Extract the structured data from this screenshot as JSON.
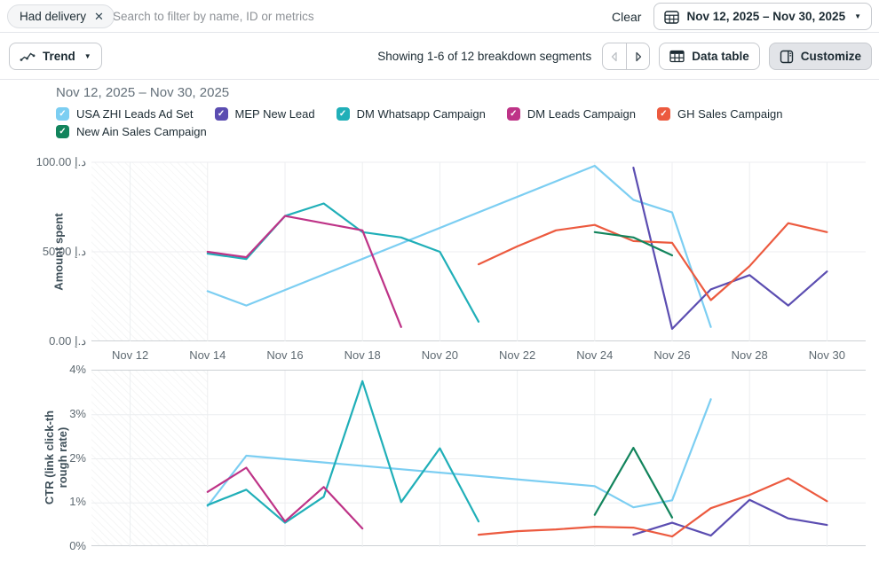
{
  "topbar": {
    "filter_chip": "Had delivery",
    "search_placeholder": "Search to filter by name, ID or metrics",
    "clear_label": "Clear",
    "date_range": "Nov 12, 2025 – Nov 30, 2025"
  },
  "toolbar": {
    "view_label": "Trend",
    "showing_text": "Showing 1-6 of 12 breakdown segments",
    "data_table_label": "Data table",
    "customize_label": "Customize"
  },
  "chart_header": {
    "title": "Nov 12, 2025 – Nov 30, 2025"
  },
  "legend": {
    "items": [
      {
        "label": "USA ZHI Leads Ad Set",
        "color": "#7CCEF2"
      },
      {
        "label": "MEP New Lead",
        "color": "#5B4DB1"
      },
      {
        "label": "DM Whatsapp Campaign",
        "color": "#20AFB8"
      },
      {
        "label": "DM Leads Campaign",
        "color": "#BE3387"
      },
      {
        "label": "GH Sales Campaign",
        "color": "#EC5A3F"
      },
      {
        "label": "New Ain Sales Campaign",
        "color": "#12845C"
      }
    ]
  },
  "chart_data": [
    {
      "type": "line",
      "ylabel": "Amount spent",
      "y_min": 0,
      "y_max": 100,
      "y_ticks": [
        {
          "value": 100,
          "label": "100.00 د.إ"
        },
        {
          "value": 50,
          "label": "50.00 د.إ"
        },
        {
          "value": 0,
          "label": "0.00 د.إ"
        }
      ],
      "grid_y": [
        50,
        100
      ],
      "x_min": -1,
      "x_max": 19,
      "no_data_before_day": 2,
      "x_ticks": [
        {
          "day": 0,
          "label": "Nov 12"
        },
        {
          "day": 2,
          "label": "Nov 14"
        },
        {
          "day": 4,
          "label": "Nov 16"
        },
        {
          "day": 6,
          "label": "Nov 18"
        },
        {
          "day": 8,
          "label": "Nov 20"
        },
        {
          "day": 10,
          "label": "Nov 22"
        },
        {
          "day": 12,
          "label": "Nov 24"
        },
        {
          "day": 14,
          "label": "Nov 26"
        },
        {
          "day": 16,
          "label": "Nov 28"
        },
        {
          "day": 18,
          "label": "Nov 30"
        }
      ],
      "series": [
        {
          "name": "USA ZHI Leads Ad Set",
          "color": "#7CCEF2",
          "points": [
            [
              2,
              28
            ],
            [
              3,
              20
            ],
            [
              12,
              98
            ],
            [
              13,
              79
            ],
            [
              14,
              72
            ],
            [
              15,
              8
            ]
          ]
        },
        {
          "name": "MEP New Lead",
          "color": "#5B4DB1",
          "points": [
            [
              13,
              97
            ],
            [
              14,
              7
            ],
            [
              15,
              29
            ],
            [
              16,
              37
            ],
            [
              17,
              20
            ],
            [
              18,
              39
            ]
          ]
        },
        {
          "name": "DM Whatsapp Campaign",
          "color": "#20AFB8",
          "points": [
            [
              2,
              49
            ],
            [
              3,
              46
            ],
            [
              4,
              70
            ],
            [
              5,
              77
            ],
            [
              6,
              61
            ],
            [
              7,
              58
            ],
            [
              8,
              50
            ],
            [
              9,
              11
            ]
          ]
        },
        {
          "name": "DM Leads Campaign",
          "color": "#BE3387",
          "points": [
            [
              2,
              50
            ],
            [
              3,
              47
            ],
            [
              4,
              70
            ],
            [
              6,
              62
            ],
            [
              7,
              8
            ]
          ]
        },
        {
          "name": "GH Sales Campaign",
          "color": "#EC5A3F",
          "points": [
            [
              9,
              43
            ],
            [
              10,
              53
            ],
            [
              11,
              62
            ],
            [
              12,
              65
            ],
            [
              13,
              56
            ],
            [
              14,
              55
            ],
            [
              15,
              23
            ],
            [
              16,
              42
            ],
            [
              17,
              66
            ],
            [
              18,
              61
            ]
          ]
        },
        {
          "name": "New Ain Sales Campaign",
          "color": "#12845C",
          "points": [
            [
              12,
              61
            ],
            [
              13,
              58
            ],
            [
              14,
              48
            ]
          ]
        }
      ]
    },
    {
      "type": "line",
      "ylabel": "CTR (link click-through rate)",
      "ylabel_lines": [
        "CTR (link click-th",
        "rough rate)"
      ],
      "y_min": 0,
      "y_max": 4,
      "y_ticks": [
        {
          "value": 4,
          "label": "4%"
        },
        {
          "value": 3,
          "label": "3%"
        },
        {
          "value": 2,
          "label": "2%"
        },
        {
          "value": 1,
          "label": "1%"
        },
        {
          "value": 0,
          "label": "0%"
        }
      ],
      "grid_y": [
        1,
        2,
        3
      ],
      "x_min": -1,
      "x_max": 19,
      "no_data_before_day": 2,
      "x_ticks": [
        {
          "day": 0,
          "label": "Nov 12"
        },
        {
          "day": 2,
          "label": "Nov 14"
        },
        {
          "day": 4,
          "label": "Nov 16"
        },
        {
          "day": 6,
          "label": "Nov 18"
        },
        {
          "day": 8,
          "label": "Nov 20"
        },
        {
          "day": 10,
          "label": "Nov 22"
        },
        {
          "day": 12,
          "label": "Nov 24"
        },
        {
          "day": 14,
          "label": "Nov 26"
        },
        {
          "day": 16,
          "label": "Nov 28"
        },
        {
          "day": 18,
          "label": "Nov 30"
        }
      ],
      "series": [
        {
          "name": "USA ZHI Leads Ad Set",
          "color": "#7CCEF2",
          "points": [
            [
              2,
              0.93
            ],
            [
              3,
              2.07
            ],
            [
              12,
              1.38
            ],
            [
              13,
              0.9
            ],
            [
              14,
              1.06
            ],
            [
              15,
              3.35
            ]
          ]
        },
        {
          "name": "MEP New Lead",
          "color": "#5B4DB1",
          "points": [
            [
              13,
              0.28
            ],
            [
              14,
              0.55
            ],
            [
              15,
              0.26
            ],
            [
              16,
              1.07
            ],
            [
              17,
              0.65
            ],
            [
              18,
              0.5
            ]
          ]
        },
        {
          "name": "DM Whatsapp Campaign",
          "color": "#20AFB8",
          "points": [
            [
              2,
              0.95
            ],
            [
              3,
              1.3
            ],
            [
              4,
              0.55
            ],
            [
              5,
              1.14
            ],
            [
              6,
              3.76
            ],
            [
              7,
              1.02
            ],
            [
              8,
              2.24
            ],
            [
              9,
              0.58
            ]
          ]
        },
        {
          "name": "DM Leads Campaign",
          "color": "#BE3387",
          "points": [
            [
              2,
              1.25
            ],
            [
              3,
              1.8
            ],
            [
              4,
              0.58
            ],
            [
              5,
              1.36
            ],
            [
              6,
              0.42
            ]
          ]
        },
        {
          "name": "GH Sales Campaign",
          "color": "#EC5A3F",
          "points": [
            [
              9,
              0.28
            ],
            [
              10,
              0.36
            ],
            [
              11,
              0.4
            ],
            [
              12,
              0.46
            ],
            [
              13,
              0.44
            ],
            [
              14,
              0.24
            ],
            [
              15,
              0.88
            ],
            [
              16,
              1.18
            ],
            [
              17,
              1.56
            ],
            [
              18,
              1.04
            ]
          ]
        },
        {
          "name": "New Ain Sales Campaign",
          "color": "#12845C",
          "points": [
            [
              12,
              0.73
            ],
            [
              13,
              2.25
            ],
            [
              14,
              0.67
            ]
          ]
        }
      ]
    }
  ]
}
